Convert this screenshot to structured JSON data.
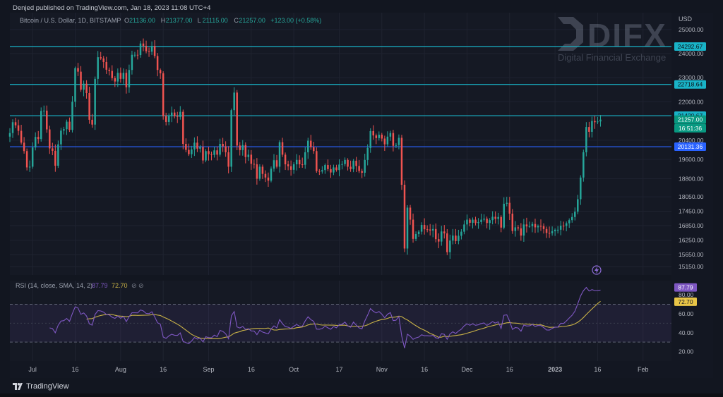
{
  "header": {
    "published_text": "Denjed published on TradingView.com, Jan 18, 2023 11:08 UTC+4",
    "symbol_label": "Bitcoin / U.S. Dollar, 1D, BITSTAMP",
    "ohlc": [
      {
        "key": "O",
        "value": "21136.00"
      },
      {
        "key": "H",
        "value": "21377.00"
      },
      {
        "key": "L",
        "value": "21115.00"
      },
      {
        "key": "C",
        "value": "21257.00"
      }
    ],
    "change_text": "+123.00 (+0.58%)",
    "currency": "USD"
  },
  "watermark": {
    "brand": "DIFX",
    "tagline": "Digital Financial Exchange"
  },
  "price_badges": [
    {
      "text": "24292.67",
      "price": 24292.67,
      "bg": "#19b3c7",
      "fg": "#0d1117"
    },
    {
      "text": "22718.64",
      "price": 22718.64,
      "bg": "#19b3c7",
      "fg": "#0d1117"
    },
    {
      "text": "21420.67",
      "price": 21420.67,
      "bg": "#19b3c7",
      "fg": "#0d1117"
    },
    {
      "text": "21257.00",
      "price": 21257.0,
      "bg": "#089981",
      "fg": "#ffffff"
    },
    {
      "text": "16:51:36",
      "price": 20900.0,
      "bg": "#089981",
      "fg": "#ffffff"
    },
    {
      "text": "20131.36",
      "price": 20131.36,
      "bg": "#2962ff",
      "fg": "#ffffff"
    }
  ],
  "rsi": {
    "label": "RSI (14, close, SMA, 14, 2)",
    "value_rsi": "87.79",
    "value_sma": "72.70",
    "value_rsi_num": 87.79,
    "value_sma_num": 72.7,
    "eye_glyph": "⊘",
    "rsi_color": "#7e57c2",
    "sma_color": "#c9b247",
    "ticks": [
      "80.00",
      "60.00",
      "40.00",
      "20.00"
    ],
    "tick_values": [
      80,
      60,
      40,
      20
    ],
    "band_upper": 70,
    "band_lower": 30
  },
  "footer": {
    "brand": "TradingView"
  },
  "colors": {
    "up": "#26a69a",
    "down": "#ef5350",
    "resistance": "#19b3c7",
    "support": "#2962ff"
  },
  "chart_data": [
    {
      "type": "candlestick",
      "title": "Bitcoin / U.S. Dollar, 1D, BITSTAMP",
      "ylabel": "USD",
      "ylim": [
        14800,
        25700
      ],
      "y_ticks": [
        25000,
        24000,
        23000,
        22000,
        20400,
        19600,
        18800,
        18050,
        17450,
        16850,
        16250,
        15650,
        15150
      ],
      "y_tick_labels": [
        "25000.00",
        "24000.00",
        "23000.00",
        "22000.00",
        "20400.00",
        "19600.00",
        "18800.00",
        "18050.00",
        "17450.00",
        "16850.00",
        "16250.00",
        "15650.00",
        "15150.00"
      ],
      "x_range": [
        "2022-06-23",
        "2023-02-11"
      ],
      "x_ticks": [
        {
          "label": "Jul",
          "date": "2022-07-01"
        },
        {
          "label": "16",
          "date": "2022-07-16"
        },
        {
          "label": "Aug",
          "date": "2022-08-01"
        },
        {
          "label": "16",
          "date": "2022-08-16"
        },
        {
          "label": "Sep",
          "date": "2022-09-01"
        },
        {
          "label": "16",
          "date": "2022-09-16"
        },
        {
          "label": "Oct",
          "date": "2022-10-01"
        },
        {
          "label": "17",
          "date": "2022-10-17"
        },
        {
          "label": "Nov",
          "date": "2022-11-01"
        },
        {
          "label": "16",
          "date": "2022-11-16"
        },
        {
          "label": "Dec",
          "date": "2022-12-01"
        },
        {
          "label": "16",
          "date": "2022-12-16"
        },
        {
          "label": "2023",
          "date": "2023-01-01",
          "bold": true
        },
        {
          "label": "16",
          "date": "2023-01-16"
        },
        {
          "label": "Feb",
          "date": "2023-02-01"
        }
      ],
      "horizontal_lines": [
        {
          "price": 24292.67,
          "color": "#19b3c7"
        },
        {
          "price": 22718.64,
          "color": "#19b3c7"
        },
        {
          "price": 21420.67,
          "color": "#19b3c7"
        },
        {
          "price": 20131.36,
          "color": "#2962ff"
        }
      ],
      "grid": true,
      "start_date": "2022-06-23",
      "closes": [
        20700,
        21150,
        21020,
        20790,
        20300,
        19950,
        19270,
        19300,
        20100,
        20540,
        20450,
        21620,
        21630,
        20850,
        20060,
        19960,
        19340,
        20230,
        20800,
        20860,
        21170,
        20830,
        22000,
        23400,
        23250,
        22500,
        22750,
        22360,
        21250,
        21050,
        22950,
        23850,
        23800,
        23650,
        23330,
        23280,
        22980,
        22840,
        23200,
        22950,
        23200,
        22600,
        23320,
        23950,
        23950,
        23940,
        24420,
        24320,
        24100,
        24080,
        24320,
        23900,
        23320,
        23180,
        21400,
        21160,
        21400,
        21550,
        21400,
        21370,
        21580,
        20250,
        20000,
        19820,
        20020,
        20300,
        20050,
        20120,
        19560,
        19950,
        19820,
        19790,
        19980,
        19800,
        20250,
        20150,
        19900,
        19300,
        21650,
        22380,
        20180,
        19990,
        20200,
        19700,
        19800,
        19420,
        19400,
        18800,
        19300,
        19000,
        18850,
        18720,
        19220,
        19570,
        19300,
        20320,
        19800,
        19400,
        19320,
        19170,
        19400,
        19580,
        19400,
        19380,
        19900,
        20380,
        20110,
        19950,
        19120,
        19100,
        19160,
        19370,
        19200,
        19060,
        19270,
        19160,
        19390,
        19410,
        19580,
        19300,
        19200,
        19550,
        19330,
        19120,
        19050,
        19580,
        20080,
        20780,
        20600,
        20490,
        20630,
        20470,
        20230,
        20550,
        20700,
        20170,
        20200,
        20500,
        18550,
        15900,
        17600,
        17100,
        16300,
        16500,
        16600,
        16880,
        16700,
        16690,
        16650,
        16710,
        16290,
        16190,
        16610,
        16530,
        15750,
        16230,
        16440,
        16210,
        16430,
        16600,
        16900,
        17100,
        16970,
        17100,
        16960,
        17000,
        17100,
        17140,
        16960,
        17080,
        17220,
        17130,
        17210,
        16770,
        17760,
        17800,
        17350,
        16630,
        16780,
        16740,
        16440,
        16900,
        16820,
        16830,
        16920,
        16780,
        16840,
        16830,
        16710,
        16550,
        16540,
        16620,
        16680,
        16680,
        16850,
        16840,
        16950,
        17080,
        17210,
        17430,
        17950,
        18850,
        19900,
        20950,
        20750,
        21200,
        21150,
        21180,
        21257
      ],
      "series": [
        {
          "name": "RSI",
          "color": "#7e57c2",
          "last": 87.79
        },
        {
          "name": "SMA",
          "color": "#c9b247",
          "last": 72.7
        }
      ]
    }
  ]
}
